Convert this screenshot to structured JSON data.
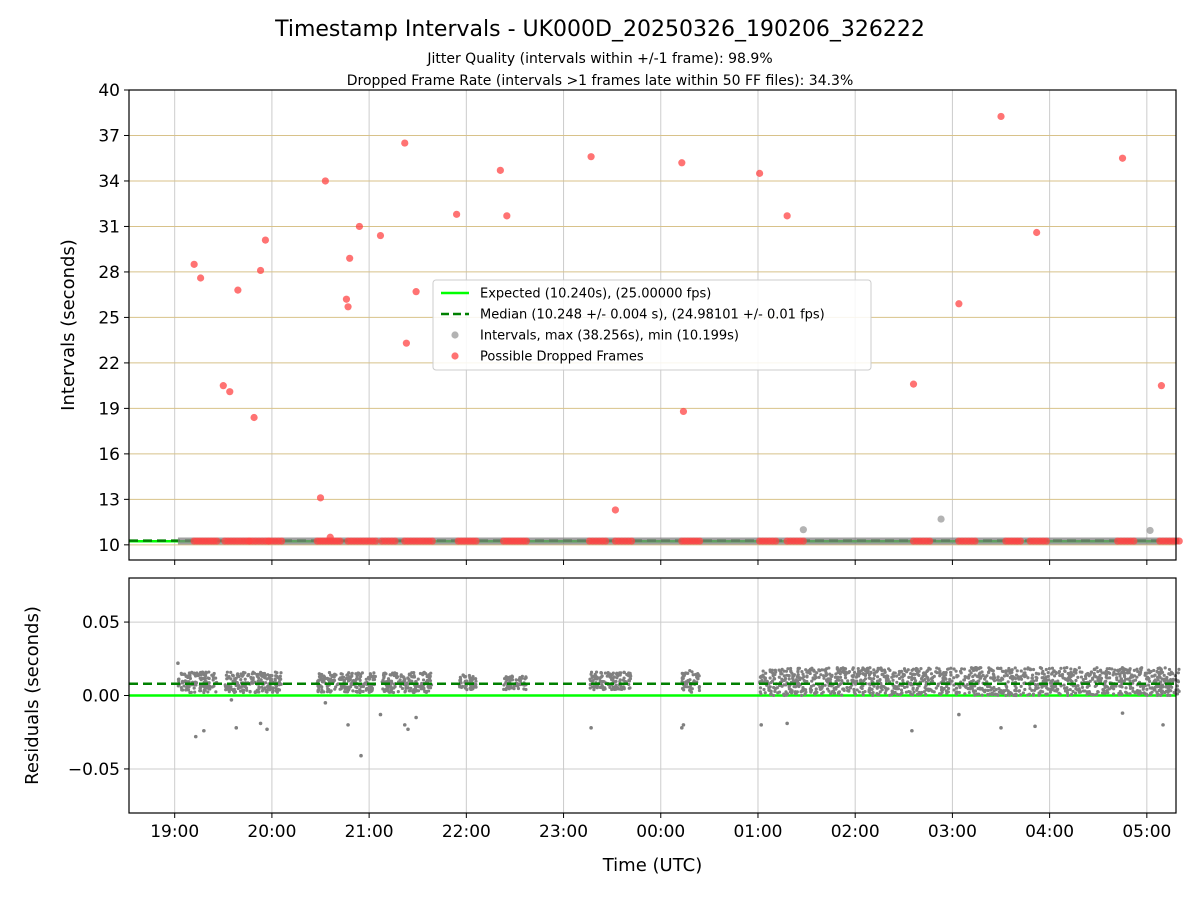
{
  "figure": {
    "title": "Timestamp Intervals - UK000D_20250326_190206_326222",
    "subtitle_1": "Jitter Quality (intervals within +/-1 frame): 98.9%",
    "subtitle_2": "Dropped Frame Rate (intervals >1 frames late within 50 FF files): 34.3%",
    "xlabel": "Time (UTC)"
  },
  "colors": {
    "expected": "#00ff00",
    "median": "#008000",
    "intervals": "#808080",
    "dropped": "#ff4444",
    "hgrid_top": "#d8c28a",
    "grid": "#cccccc"
  },
  "chart_data": [
    {
      "type": "scatter",
      "panel": "top",
      "ylabel": "Intervals (seconds)",
      "xlim_hours": [
        18.53,
        29.3
      ],
      "ylim": [
        9.0,
        40.0
      ],
      "yticks": [
        10,
        13,
        16,
        19,
        22,
        25,
        28,
        31,
        34,
        37,
        40
      ],
      "xticks": [
        {
          "h": 19,
          "label": "19:00"
        },
        {
          "h": 20,
          "label": "20:00"
        },
        {
          "h": 21,
          "label": "21:00"
        },
        {
          "h": 22,
          "label": "22:00"
        },
        {
          "h": 23,
          "label": "23:00"
        },
        {
          "h": 24,
          "label": "00:00"
        },
        {
          "h": 25,
          "label": "01:00"
        },
        {
          "h": 26,
          "label": "02:00"
        },
        {
          "h": 27,
          "label": "03:00"
        },
        {
          "h": 28,
          "label": "04:00"
        },
        {
          "h": 29,
          "label": "05:00"
        }
      ],
      "grid": true,
      "legend_position": "center",
      "expected": 10.24,
      "median": 10.248,
      "legend": [
        {
          "key": "expected",
          "label": "Expected (10.240s), (25.00000 fps)"
        },
        {
          "key": "median",
          "label": "Median (10.248 +/- 0.004 s), (24.98101 +/- 0.01 fps)"
        },
        {
          "key": "intervals",
          "label": "Intervals, max (38.256s), min (10.199s)"
        },
        {
          "key": "dropped",
          "label": "Possible Dropped Frames"
        }
      ],
      "intervals_band": {
        "x_start": "19:02",
        "x_end": "05:20",
        "y": 10.25
      },
      "intervals_outliers": [
        {
          "x": "01:28",
          "y": 11.0
        },
        {
          "x": "02:53",
          "y": 11.7
        },
        {
          "x": "05:02",
          "y": 10.95
        }
      ],
      "dropped_clusters": [
        {
          "x_start": "19:12",
          "x_end": "19:26",
          "y": 10.25
        },
        {
          "x_start": "19:31",
          "x_end": "19:46",
          "y": 10.25
        },
        {
          "x_start": "19:46",
          "x_end": "19:58",
          "y": 10.25
        },
        {
          "x_start": "19:58",
          "x_end": "20:06",
          "y": 10.25
        },
        {
          "x_start": "20:28",
          "x_end": "20:42",
          "y": 10.25
        },
        {
          "x_start": "20:47",
          "x_end": "21:04",
          "y": 10.25
        },
        {
          "x_start": "21:08",
          "x_end": "21:16",
          "y": 10.25
        },
        {
          "x_start": "21:22",
          "x_end": "21:39",
          "y": 10.25
        },
        {
          "x_start": "21:55",
          "x_end": "22:06",
          "y": 10.25
        },
        {
          "x_start": "22:23",
          "x_end": "22:37",
          "y": 10.25
        },
        {
          "x_start": "23:16",
          "x_end": "23:26",
          "y": 10.25
        },
        {
          "x_start": "23:32",
          "x_end": "23:42",
          "y": 10.25
        },
        {
          "x_start": "00:13",
          "x_end": "00:24",
          "y": 10.25
        },
        {
          "x_start": "01:01",
          "x_end": "01:11",
          "y": 10.25
        },
        {
          "x_start": "01:18",
          "x_end": "01:28",
          "y": 10.25
        },
        {
          "x_start": "02:36",
          "x_end": "02:46",
          "y": 10.25
        },
        {
          "x_start": "03:04",
          "x_end": "03:14",
          "y": 10.25
        },
        {
          "x_start": "03:33",
          "x_end": "03:42",
          "y": 10.25
        },
        {
          "x_start": "03:48",
          "x_end": "03:58",
          "y": 10.25
        },
        {
          "x_start": "04:42",
          "x_end": "04:52",
          "y": 10.25
        },
        {
          "x_start": "05:08",
          "x_end": "05:20",
          "y": 10.25
        }
      ],
      "dropped_points": [
        {
          "x": "19:12",
          "y": 28.5
        },
        {
          "x": "19:16",
          "y": 27.6
        },
        {
          "x": "19:30",
          "y": 20.5
        },
        {
          "x": "19:34",
          "y": 20.1
        },
        {
          "x": "19:39",
          "y": 26.8
        },
        {
          "x": "19:49",
          "y": 18.4
        },
        {
          "x": "19:53",
          "y": 28.1
        },
        {
          "x": "19:56",
          "y": 30.1
        },
        {
          "x": "20:30",
          "y": 13.1
        },
        {
          "x": "20:33",
          "y": 34.0
        },
        {
          "x": "20:36",
          "y": 10.5
        },
        {
          "x": "20:46",
          "y": 26.2
        },
        {
          "x": "20:47",
          "y": 25.7
        },
        {
          "x": "20:48",
          "y": 28.9
        },
        {
          "x": "20:54",
          "y": 31.0
        },
        {
          "x": "21:07",
          "y": 30.4
        },
        {
          "x": "21:22",
          "y": 36.5
        },
        {
          "x": "21:23",
          "y": 23.3
        },
        {
          "x": "21:29",
          "y": 26.7
        },
        {
          "x": "21:54",
          "y": 31.8
        },
        {
          "x": "22:21",
          "y": 34.7
        },
        {
          "x": "22:25",
          "y": 31.7
        },
        {
          "x": "23:17",
          "y": 35.6
        },
        {
          "x": "23:32",
          "y": 12.3
        },
        {
          "x": "00:13",
          "y": 35.2
        },
        {
          "x": "00:14",
          "y": 18.8
        },
        {
          "x": "01:01",
          "y": 34.5
        },
        {
          "x": "01:18",
          "y": 31.7
        },
        {
          "x": "02:36",
          "y": 20.6
        },
        {
          "x": "03:04",
          "y": 25.9
        },
        {
          "x": "03:30",
          "y": 38.256
        },
        {
          "x": "03:52",
          "y": 30.6
        },
        {
          "x": "04:45",
          "y": 35.5
        },
        {
          "x": "05:09",
          "y": 20.5
        }
      ]
    },
    {
      "type": "scatter",
      "panel": "bottom",
      "ylabel": "Residuals (seconds)",
      "xlabel": "Time (UTC)",
      "xlim_hours": [
        18.53,
        29.3
      ],
      "ylim": [
        -0.08,
        0.08
      ],
      "yticks": [
        {
          "v": 0.05,
          "label": "0.05"
        },
        {
          "v": 0.0,
          "label": "0.00"
        },
        {
          "v": -0.05,
          "label": "−0.05"
        }
      ],
      "grid": true,
      "expected_residual": 0.0,
      "median_residual": 0.008,
      "dense_clusters": [
        {
          "x_start": "19:02",
          "x_end": "19:26",
          "y_min": 0.002,
          "y_max": 0.016
        },
        {
          "x_start": "19:31",
          "x_end": "20:06",
          "y_min": 0.002,
          "y_max": 0.016
        },
        {
          "x_start": "20:28",
          "x_end": "21:04",
          "y_min": 0.002,
          "y_max": 0.016
        },
        {
          "x_start": "21:08",
          "x_end": "21:39",
          "y_min": 0.002,
          "y_max": 0.016
        },
        {
          "x_start": "21:55",
          "x_end": "22:06",
          "y_min": 0.004,
          "y_max": 0.014
        },
        {
          "x_start": "22:23",
          "x_end": "22:37",
          "y_min": 0.004,
          "y_max": 0.014
        },
        {
          "x_start": "23:16",
          "x_end": "23:42",
          "y_min": 0.004,
          "y_max": 0.016
        },
        {
          "x_start": "00:13",
          "x_end": "00:24",
          "y_min": 0.002,
          "y_max": 0.017
        },
        {
          "x_start": "01:01",
          "x_end": "05:20",
          "y_min": 0.0,
          "y_max": 0.019
        }
      ],
      "points": [
        {
          "x": "19:02",
          "y": 0.022
        },
        {
          "x": "19:13",
          "y": -0.028
        },
        {
          "x": "19:18",
          "y": -0.024
        },
        {
          "x": "19:38",
          "y": -0.022
        },
        {
          "x": "19:35",
          "y": -0.003
        },
        {
          "x": "19:53",
          "y": -0.019
        },
        {
          "x": "19:57",
          "y": -0.023
        },
        {
          "x": "20:47",
          "y": -0.02
        },
        {
          "x": "20:55",
          "y": -0.041
        },
        {
          "x": "20:33",
          "y": -0.005
        },
        {
          "x": "21:07",
          "y": -0.013
        },
        {
          "x": "21:22",
          "y": -0.02
        },
        {
          "x": "21:24",
          "y": -0.023
        },
        {
          "x": "21:29",
          "y": -0.015
        },
        {
          "x": "23:17",
          "y": -0.022
        },
        {
          "x": "00:13",
          "y": -0.022
        },
        {
          "x": "00:14",
          "y": -0.02
        },
        {
          "x": "01:02",
          "y": -0.02
        },
        {
          "x": "01:18",
          "y": -0.019
        },
        {
          "x": "02:35",
          "y": -0.024
        },
        {
          "x": "03:04",
          "y": -0.013
        },
        {
          "x": "03:30",
          "y": -0.022
        },
        {
          "x": "03:51",
          "y": -0.021
        },
        {
          "x": "04:45",
          "y": -0.012
        },
        {
          "x": "05:10",
          "y": -0.02
        }
      ]
    }
  ]
}
